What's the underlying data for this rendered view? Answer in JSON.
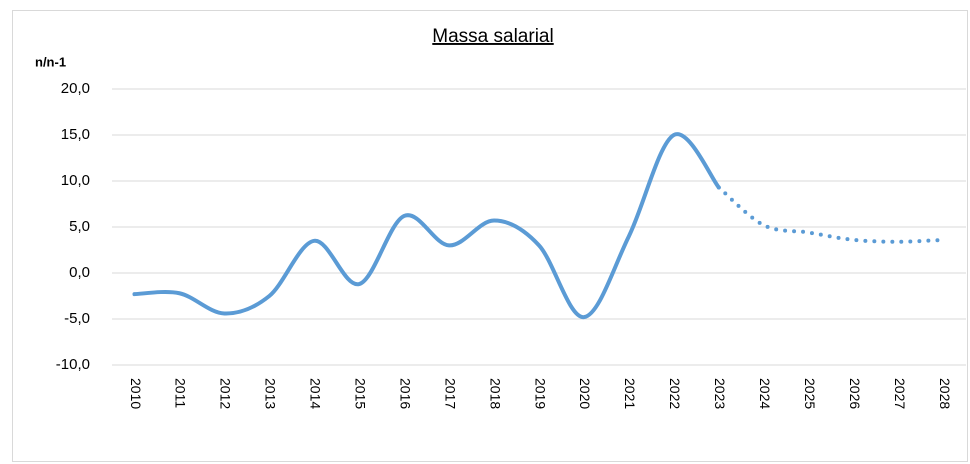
{
  "chart_data": {
    "type": "line",
    "title": "Massa salarial",
    "ylabel": "n/n-1",
    "categories": [
      "2010",
      "2011",
      "2012",
      "2013",
      "2014",
      "2015",
      "2016",
      "2017",
      "2018",
      "2019",
      "2020",
      "2021",
      "2022",
      "2023",
      "2024",
      "2025",
      "2026",
      "2027",
      "2028"
    ],
    "values": [
      -2.3,
      -2.2,
      -4.4,
      -2.5,
      3.5,
      -1.2,
      6.2,
      3.0,
      5.7,
      3.0,
      -4.8,
      4.0,
      15.0,
      9.3,
      5.2,
      4.4,
      3.6,
      3.4,
      3.6
    ],
    "dotted_from_index": 13,
    "color": "#5b9bd5",
    "ylim": [
      -10,
      20
    ],
    "yticks": [
      {
        "value": -10,
        "label": "-10,0"
      },
      {
        "value": -5,
        "label": "-5,0"
      },
      {
        "value": 0,
        "label": "0,0"
      },
      {
        "value": 5,
        "label": "5,0"
      },
      {
        "value": 10,
        "label": "10,0"
      },
      {
        "value": 15,
        "label": "15,0"
      },
      {
        "value": 20,
        "label": "20,0"
      }
    ],
    "grid": true
  }
}
